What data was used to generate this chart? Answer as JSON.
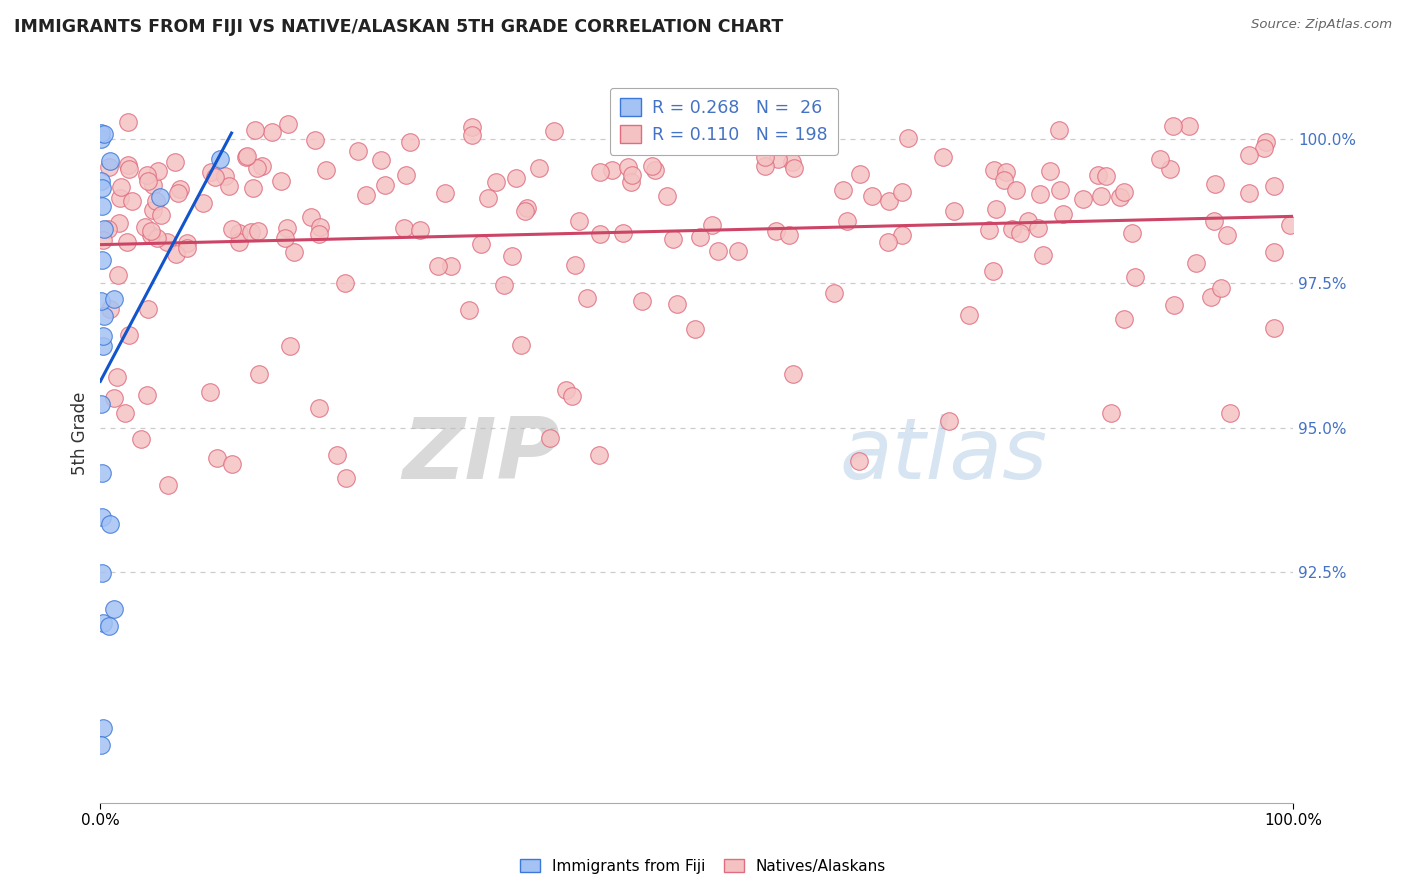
{
  "title": "IMMIGRANTS FROM FIJI VS NATIVE/ALASKAN 5TH GRADE CORRELATION CHART",
  "source": "Source: ZipAtlas.com",
  "ylabel": "5th Grade",
  "watermark_zip": "ZIP",
  "watermark_atlas": "atlas",
  "fiji_R": 0.268,
  "fiji_N": 26,
  "native_R": 0.11,
  "native_N": 198,
  "fiji_face_color": "#a4c2f4",
  "fiji_edge_color": "#3c78d8",
  "native_face_color": "#f4c2c2",
  "native_edge_color": "#e06c80",
  "fiji_line_color": "#1155cc",
  "native_line_color": "#cc4466",
  "xlim": [
    0.0,
    1.0
  ],
  "ylim": [
    88.5,
    101.3
  ],
  "yticks": [
    92.5,
    95.0,
    97.5,
    100.0
  ],
  "ytick_labels": [
    "92.5%",
    "95.0%",
    "97.5%",
    "100.0%"
  ],
  "xticks": [
    0.0,
    1.0
  ],
  "xtick_labels": [
    "0.0%",
    "100.0%"
  ],
  "grid_color": "#cccccc",
  "background_color": "#ffffff",
  "ytick_color": "#4472c4",
  "legend_fiji_label": "R = 0.268   N =  26",
  "legend_native_label": "R = 0.110   N = 198",
  "bottom_legend_fiji": "Immigrants from Fiji",
  "bottom_legend_native": "Natives/Alaskans"
}
